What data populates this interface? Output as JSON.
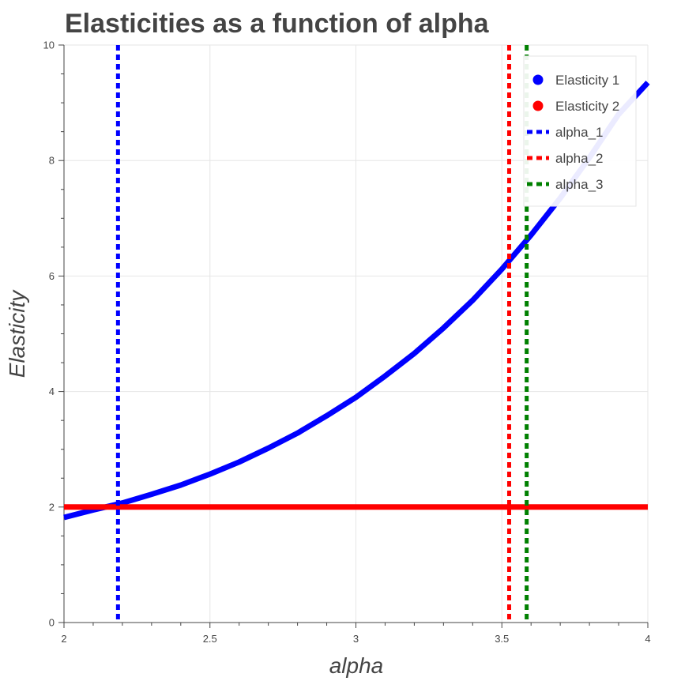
{
  "chart_data": {
    "type": "line",
    "title": "Elasticities as a function of alpha",
    "xlabel": "alpha",
    "ylabel": "Elasticity",
    "xlim": [
      2,
      4
    ],
    "ylim": [
      0,
      10
    ],
    "xticks": [
      2,
      2.5,
      3,
      3.5,
      4
    ],
    "xtick_labels": [
      "2",
      "2.5",
      "3",
      "3.5",
      "4"
    ],
    "yticks": [
      0,
      2,
      4,
      6,
      8,
      10
    ],
    "ytick_labels": [
      "0",
      "2",
      "4",
      "6",
      "8",
      "10"
    ],
    "grid": true,
    "legend_position": "top-right",
    "series": [
      {
        "name": "Elasticity 1",
        "color": "#0000ff",
        "style": "solid",
        "x": [
          2.0,
          2.1,
          2.2,
          2.3,
          2.4,
          2.5,
          2.6,
          2.7,
          2.8,
          2.9,
          3.0,
          3.1,
          3.2,
          3.3,
          3.4,
          3.5,
          3.6,
          3.7,
          3.8,
          3.9,
          4.0
        ],
        "y": [
          1.82,
          1.95,
          2.07,
          2.22,
          2.38,
          2.57,
          2.78,
          3.02,
          3.28,
          3.58,
          3.9,
          4.27,
          4.66,
          5.1,
          5.58,
          6.12,
          6.71,
          7.35,
          8.05,
          8.8,
          9.35
        ]
      },
      {
        "name": "Elasticity 2",
        "color": "#ff0000",
        "style": "solid",
        "x": [
          2.0,
          4.0
        ],
        "y": [
          2.0,
          2.0
        ]
      }
    ],
    "vlines": [
      {
        "name": "alpha_1",
        "x": 2.185,
        "color": "#0000ff",
        "style": "dashed"
      },
      {
        "name": "alpha_2",
        "x": 3.525,
        "color": "#ff0000",
        "style": "dashed"
      },
      {
        "name": "alpha_3",
        "x": 3.585,
        "color": "#008000",
        "style": "dashed"
      }
    ],
    "legend": [
      {
        "label": "Elasticity 1",
        "color": "#0000ff",
        "marker": "circle"
      },
      {
        "label": "Elasticity 2",
        "color": "#ff0000",
        "marker": "circle"
      },
      {
        "label": "alpha_1",
        "color": "#0000ff",
        "marker": "dashed-line"
      },
      {
        "label": "alpha_2",
        "color": "#ff0000",
        "marker": "dashed-line"
      },
      {
        "label": "alpha_3",
        "color": "#008000",
        "marker": "dashed-line"
      }
    ]
  }
}
